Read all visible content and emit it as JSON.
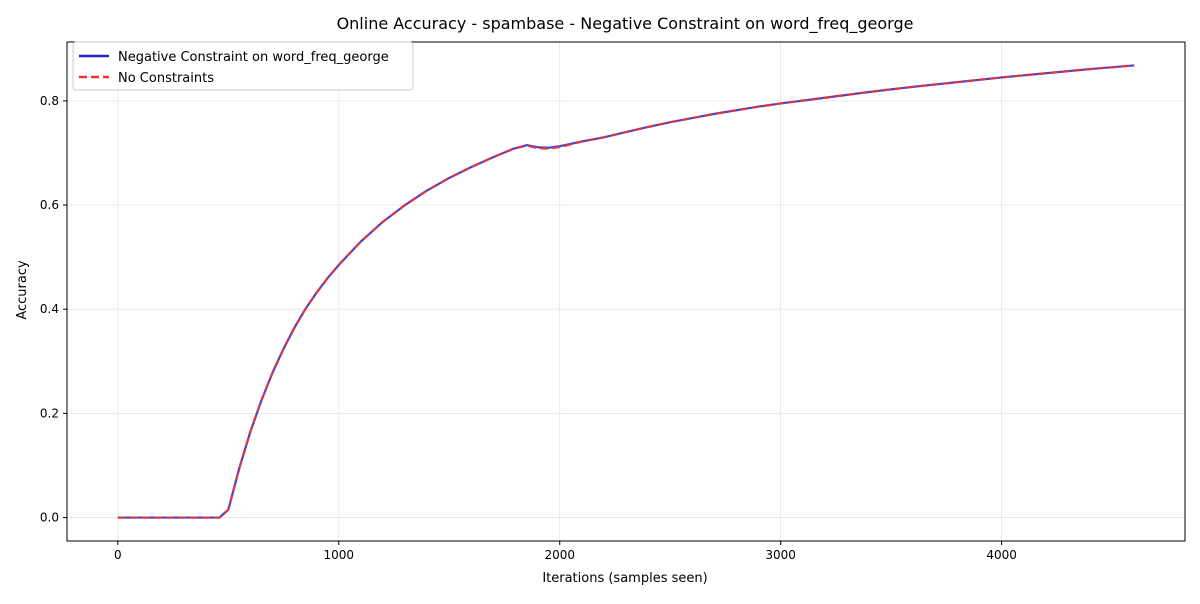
{
  "chart_data": {
    "type": "line",
    "title": "Online Accuracy - spambase - Negative Constraint on word_freq_george",
    "xlabel": "Iterations (samples seen)",
    "ylabel": "Accuracy",
    "xlim": [
      -230,
      4830
    ],
    "ylim": [
      -0.045,
      0.913
    ],
    "xticks": [
      0,
      1000,
      2000,
      3000,
      4000
    ],
    "xtick_labels": [
      "0",
      "1000",
      "2000",
      "3000",
      "4000"
    ],
    "yticks": [
      0.0,
      0.2,
      0.4,
      0.6,
      0.8
    ],
    "ytick_labels": [
      "0.0",
      "0.2",
      "0.4",
      "0.6",
      "0.8"
    ],
    "grid": true,
    "legend_position": "upper-left",
    "series": [
      {
        "name": "Negative Constraint on word_freq_george",
        "color": "#2222cc",
        "style": "solid",
        "x": [
          0,
          100,
          200,
          300,
          400,
          460,
          500,
          550,
          600,
          650,
          700,
          750,
          800,
          850,
          900,
          950,
          1000,
          1100,
          1200,
          1300,
          1400,
          1500,
          1600,
          1700,
          1790,
          1850,
          1900,
          1950,
          2000,
          2100,
          2200,
          2300,
          2400,
          2500,
          2600,
          2700,
          2800,
          2900,
          3000,
          3200,
          3400,
          3600,
          3800,
          4000,
          4200,
          4400,
          4600
        ],
        "y": [
          0.0,
          0.0,
          0.0,
          0.0,
          0.0,
          0.0,
          0.015,
          0.095,
          0.165,
          0.225,
          0.278,
          0.324,
          0.365,
          0.401,
          0.432,
          0.46,
          0.485,
          0.53,
          0.568,
          0.6,
          0.628,
          0.652,
          0.673,
          0.692,
          0.708,
          0.715,
          0.711,
          0.71,
          0.713,
          0.722,
          0.73,
          0.74,
          0.75,
          0.759,
          0.767,
          0.775,
          0.782,
          0.789,
          0.795,
          0.806,
          0.817,
          0.827,
          0.836,
          0.845,
          0.853,
          0.861,
          0.868
        ]
      },
      {
        "name": "No Constraints",
        "color": "#ee3333",
        "style": "dashed",
        "x": [
          0,
          100,
          200,
          300,
          400,
          460,
          500,
          550,
          600,
          650,
          700,
          750,
          800,
          850,
          900,
          950,
          1000,
          1100,
          1200,
          1300,
          1400,
          1500,
          1600,
          1700,
          1790,
          1850,
          1900,
          1950,
          2000,
          2100,
          2200,
          2300,
          2400,
          2500,
          2600,
          2700,
          2800,
          2900,
          3000,
          3200,
          3400,
          3600,
          3800,
          4000,
          4200,
          4400,
          4600
        ],
        "y": [
          0.0,
          0.0,
          0.0,
          0.0,
          0.0,
          0.0,
          0.015,
          0.095,
          0.165,
          0.225,
          0.278,
          0.324,
          0.365,
          0.401,
          0.432,
          0.46,
          0.485,
          0.53,
          0.568,
          0.6,
          0.628,
          0.652,
          0.673,
          0.692,
          0.708,
          0.714,
          0.709,
          0.708,
          0.711,
          0.722,
          0.73,
          0.74,
          0.75,
          0.759,
          0.767,
          0.775,
          0.782,
          0.789,
          0.795,
          0.806,
          0.817,
          0.827,
          0.836,
          0.845,
          0.853,
          0.861,
          0.868
        ]
      }
    ]
  }
}
